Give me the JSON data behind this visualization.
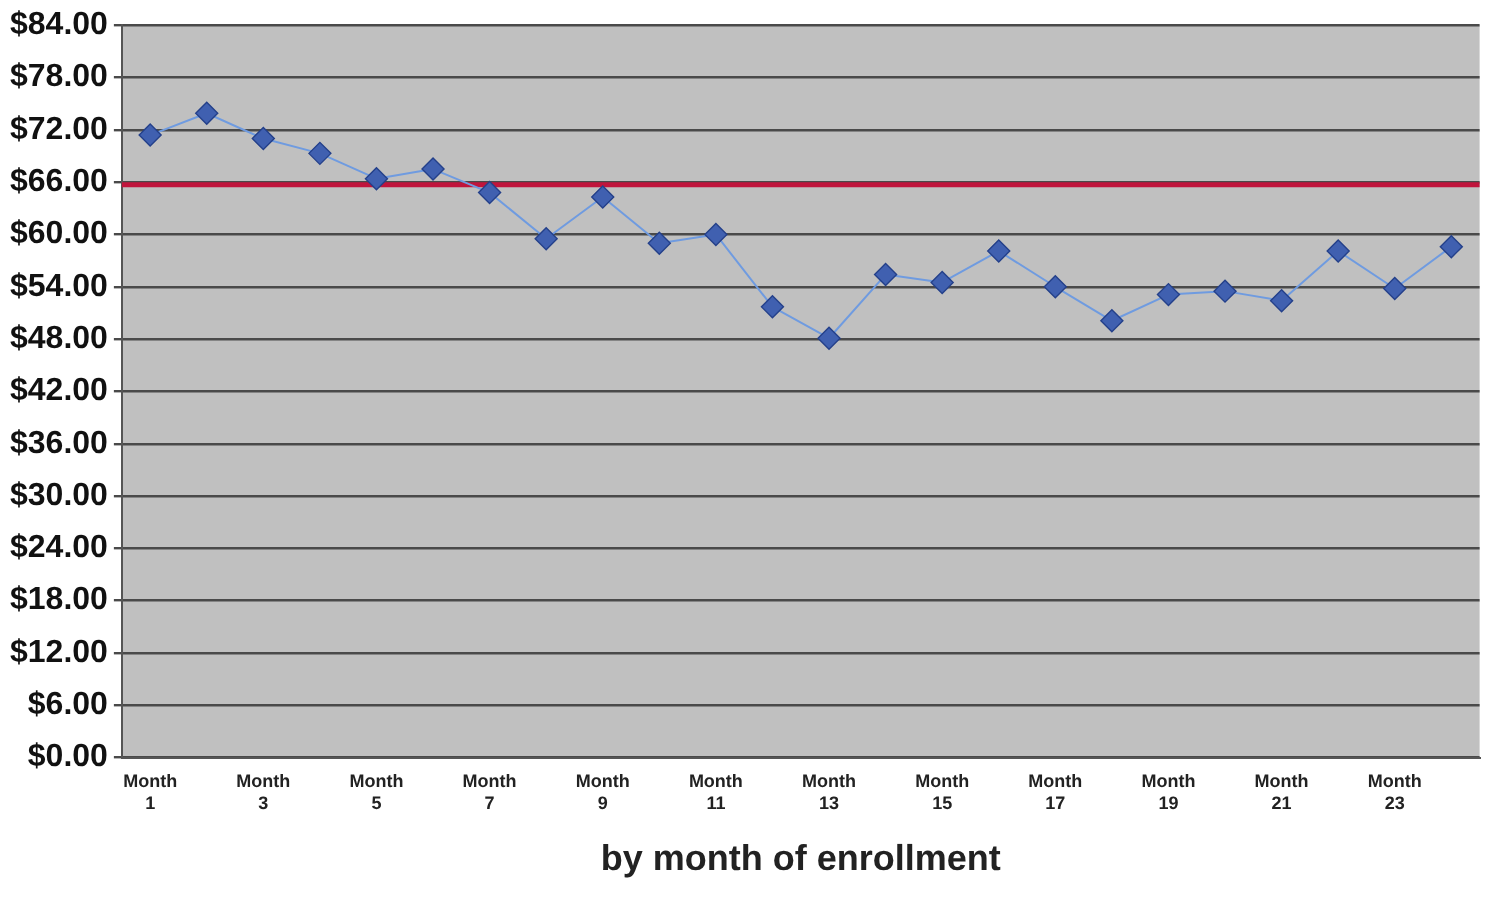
{
  "chart_data": {
    "type": "line",
    "xlabel": "by month of enrollment",
    "categories": [
      "Month 1",
      null,
      "Month 3",
      null,
      "Month 5",
      null,
      "Month 7",
      null,
      "Month 9",
      null,
      "Month 11",
      null,
      "Month 13",
      null,
      "Month 15",
      null,
      "Month 17",
      null,
      "Month 19",
      null,
      "Month 21",
      null,
      "Month 23",
      null
    ],
    "series": [
      {
        "color": "#4060b0",
        "values": [
          71.4,
          73.9,
          71.0,
          69.3,
          66.4,
          67.5,
          64.8,
          59.5,
          64.3,
          59.0,
          60.0,
          51.7,
          48.1,
          55.4,
          54.5,
          58.1,
          54.0,
          50.1,
          53.1,
          53.5,
          52.4,
          58.1,
          53.8,
          58.6
        ]
      }
    ],
    "ylim": [
      0,
      84
    ],
    "yticks": [
      {
        "value": 0,
        "label": "$0.00"
      },
      {
        "value": 6,
        "label": "$6.00"
      },
      {
        "value": 12,
        "label": "$12.00"
      },
      {
        "value": 18,
        "label": "$18.00"
      },
      {
        "value": 24,
        "label": "$24.00"
      },
      {
        "value": 30,
        "label": "$30.00"
      },
      {
        "value": 36,
        "label": "$36.00"
      },
      {
        "value": 42,
        "label": "$42.00"
      },
      {
        "value": 48,
        "label": "$48.00"
      },
      {
        "value": 54,
        "label": "$54.00"
      },
      {
        "value": 60,
        "label": "$60.00"
      },
      {
        "value": 66,
        "label": "$66.00"
      },
      {
        "value": 72,
        "label": "$72.00"
      },
      {
        "value": 78,
        "label": "$78.00"
      },
      {
        "value": 84,
        "label": "$84.00"
      }
    ],
    "ref_lines": [
      {
        "axis": "y",
        "value": 65.7,
        "color": "#c0143c"
      }
    ],
    "grid": "y",
    "legend": false,
    "marker": "diamond",
    "line_style": "solid"
  }
}
